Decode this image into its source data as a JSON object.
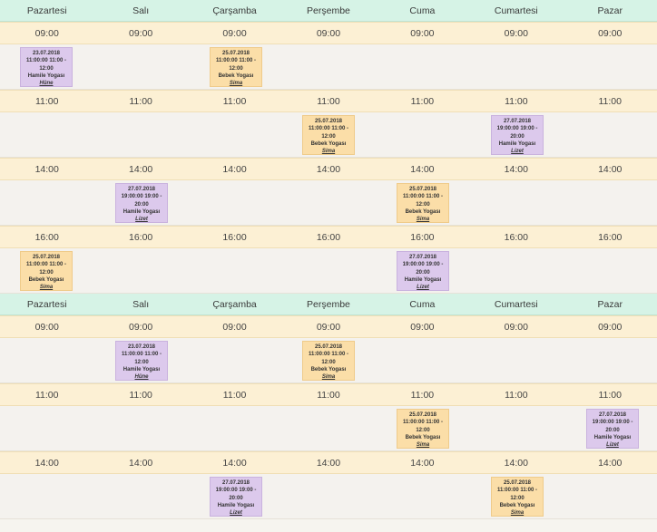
{
  "days": [
    "Pazartesi",
    "Salı",
    "Çarşamba",
    "Perşembe",
    "Cuma",
    "Cumartesi",
    "Pazar"
  ],
  "colors": {
    "header": "#d6f3e6",
    "time_row": "#fcf0d4",
    "slot_row": "#f4f2ee",
    "purple_event": "#dcc9ec",
    "orange_event": "#fbdea8"
  },
  "weeks": [
    {
      "times": [
        {
          "time": "09:00",
          "events": [
            {
              "day": 0,
              "color": "purple",
              "date": "23.07.2018",
              "range": "11:00:00 11:00 -",
              "end": "12:00",
              "title": "Hamile Yogası",
              "teacher": "Hüne"
            },
            {
              "day": 2,
              "color": "orange",
              "date": "25.07.2018",
              "range": "11:00:00 11:00 -",
              "end": "12:00",
              "title": "Bebek Yogası",
              "teacher": "Sima"
            }
          ]
        },
        {
          "time": "11:00",
          "events": [
            {
              "day": 3,
              "color": "orange",
              "date": "25.07.2018",
              "range": "11:00:00 11:00 -",
              "end": "12:00",
              "title": "Bebek Yogası",
              "teacher": "Sima"
            },
            {
              "day": 5,
              "color": "purple",
              "date": "27.07.2018",
              "range": "19:00:00 19:00 -",
              "end": "20:00",
              "title": "Hamile Yogası",
              "teacher": "Lizet"
            }
          ]
        },
        {
          "time": "14:00",
          "events": [
            {
              "day": 1,
              "color": "purple",
              "date": "27.07.2018",
              "range": "19:00:00 19:00 -",
              "end": "20:00",
              "title": "Hamile Yogası",
              "teacher": "Lizet"
            },
            {
              "day": 4,
              "color": "orange",
              "date": "25.07.2018",
              "range": "11:00:00 11:00 -",
              "end": "12:00",
              "title": "Bebek Yogası",
              "teacher": "Sima"
            }
          ]
        },
        {
          "time": "16:00",
          "events": [
            {
              "day": 0,
              "color": "orange",
              "date": "25.07.2018",
              "range": "11:00:00 11:00 -",
              "end": "12:00",
              "title": "Bebek Yogası",
              "teacher": "Sima"
            },
            {
              "day": 4,
              "color": "purple",
              "date": "27.07.2018",
              "range": "19:00:00 19:00 -",
              "end": "20:00",
              "title": "Hamile Yogası",
              "teacher": "Lizet"
            }
          ]
        }
      ]
    },
    {
      "times": [
        {
          "time": "09:00",
          "events": [
            {
              "day": 1,
              "color": "purple",
              "date": "23.07.2018",
              "range": "11:00:00 11:00 -",
              "end": "12:00",
              "title": "Hamile Yogası",
              "teacher": "Hüne"
            },
            {
              "day": 3,
              "color": "orange",
              "date": "25.07.2018",
              "range": "11:00:00 11:00 -",
              "end": "12:00",
              "title": "Bebek Yogası",
              "teacher": "Sima"
            }
          ]
        },
        {
          "time": "11:00",
          "events": [
            {
              "day": 4,
              "color": "orange",
              "date": "25.07.2018",
              "range": "11:00:00 11:00 -",
              "end": "12:00",
              "title": "Bebek Yogası",
              "teacher": "Sima"
            },
            {
              "day": 6,
              "color": "purple",
              "date": "27.07.2018",
              "range": "19:00:00 19:00 -",
              "end": "20:00",
              "title": "Hamile Yogası",
              "teacher": "Lizet"
            }
          ]
        },
        {
          "time": "14:00",
          "events": [
            {
              "day": 2,
              "color": "purple",
              "date": "27.07.2018",
              "range": "19:00:00 19:00 -",
              "end": "20:00",
              "title": "Hamile Yogası",
              "teacher": "Lizet"
            },
            {
              "day": 5,
              "color": "orange",
              "date": "25.07.2018",
              "range": "11:00:00 11:00 -",
              "end": "12:00",
              "title": "Bebek Yogası",
              "teacher": "Sima"
            }
          ]
        }
      ]
    }
  ]
}
